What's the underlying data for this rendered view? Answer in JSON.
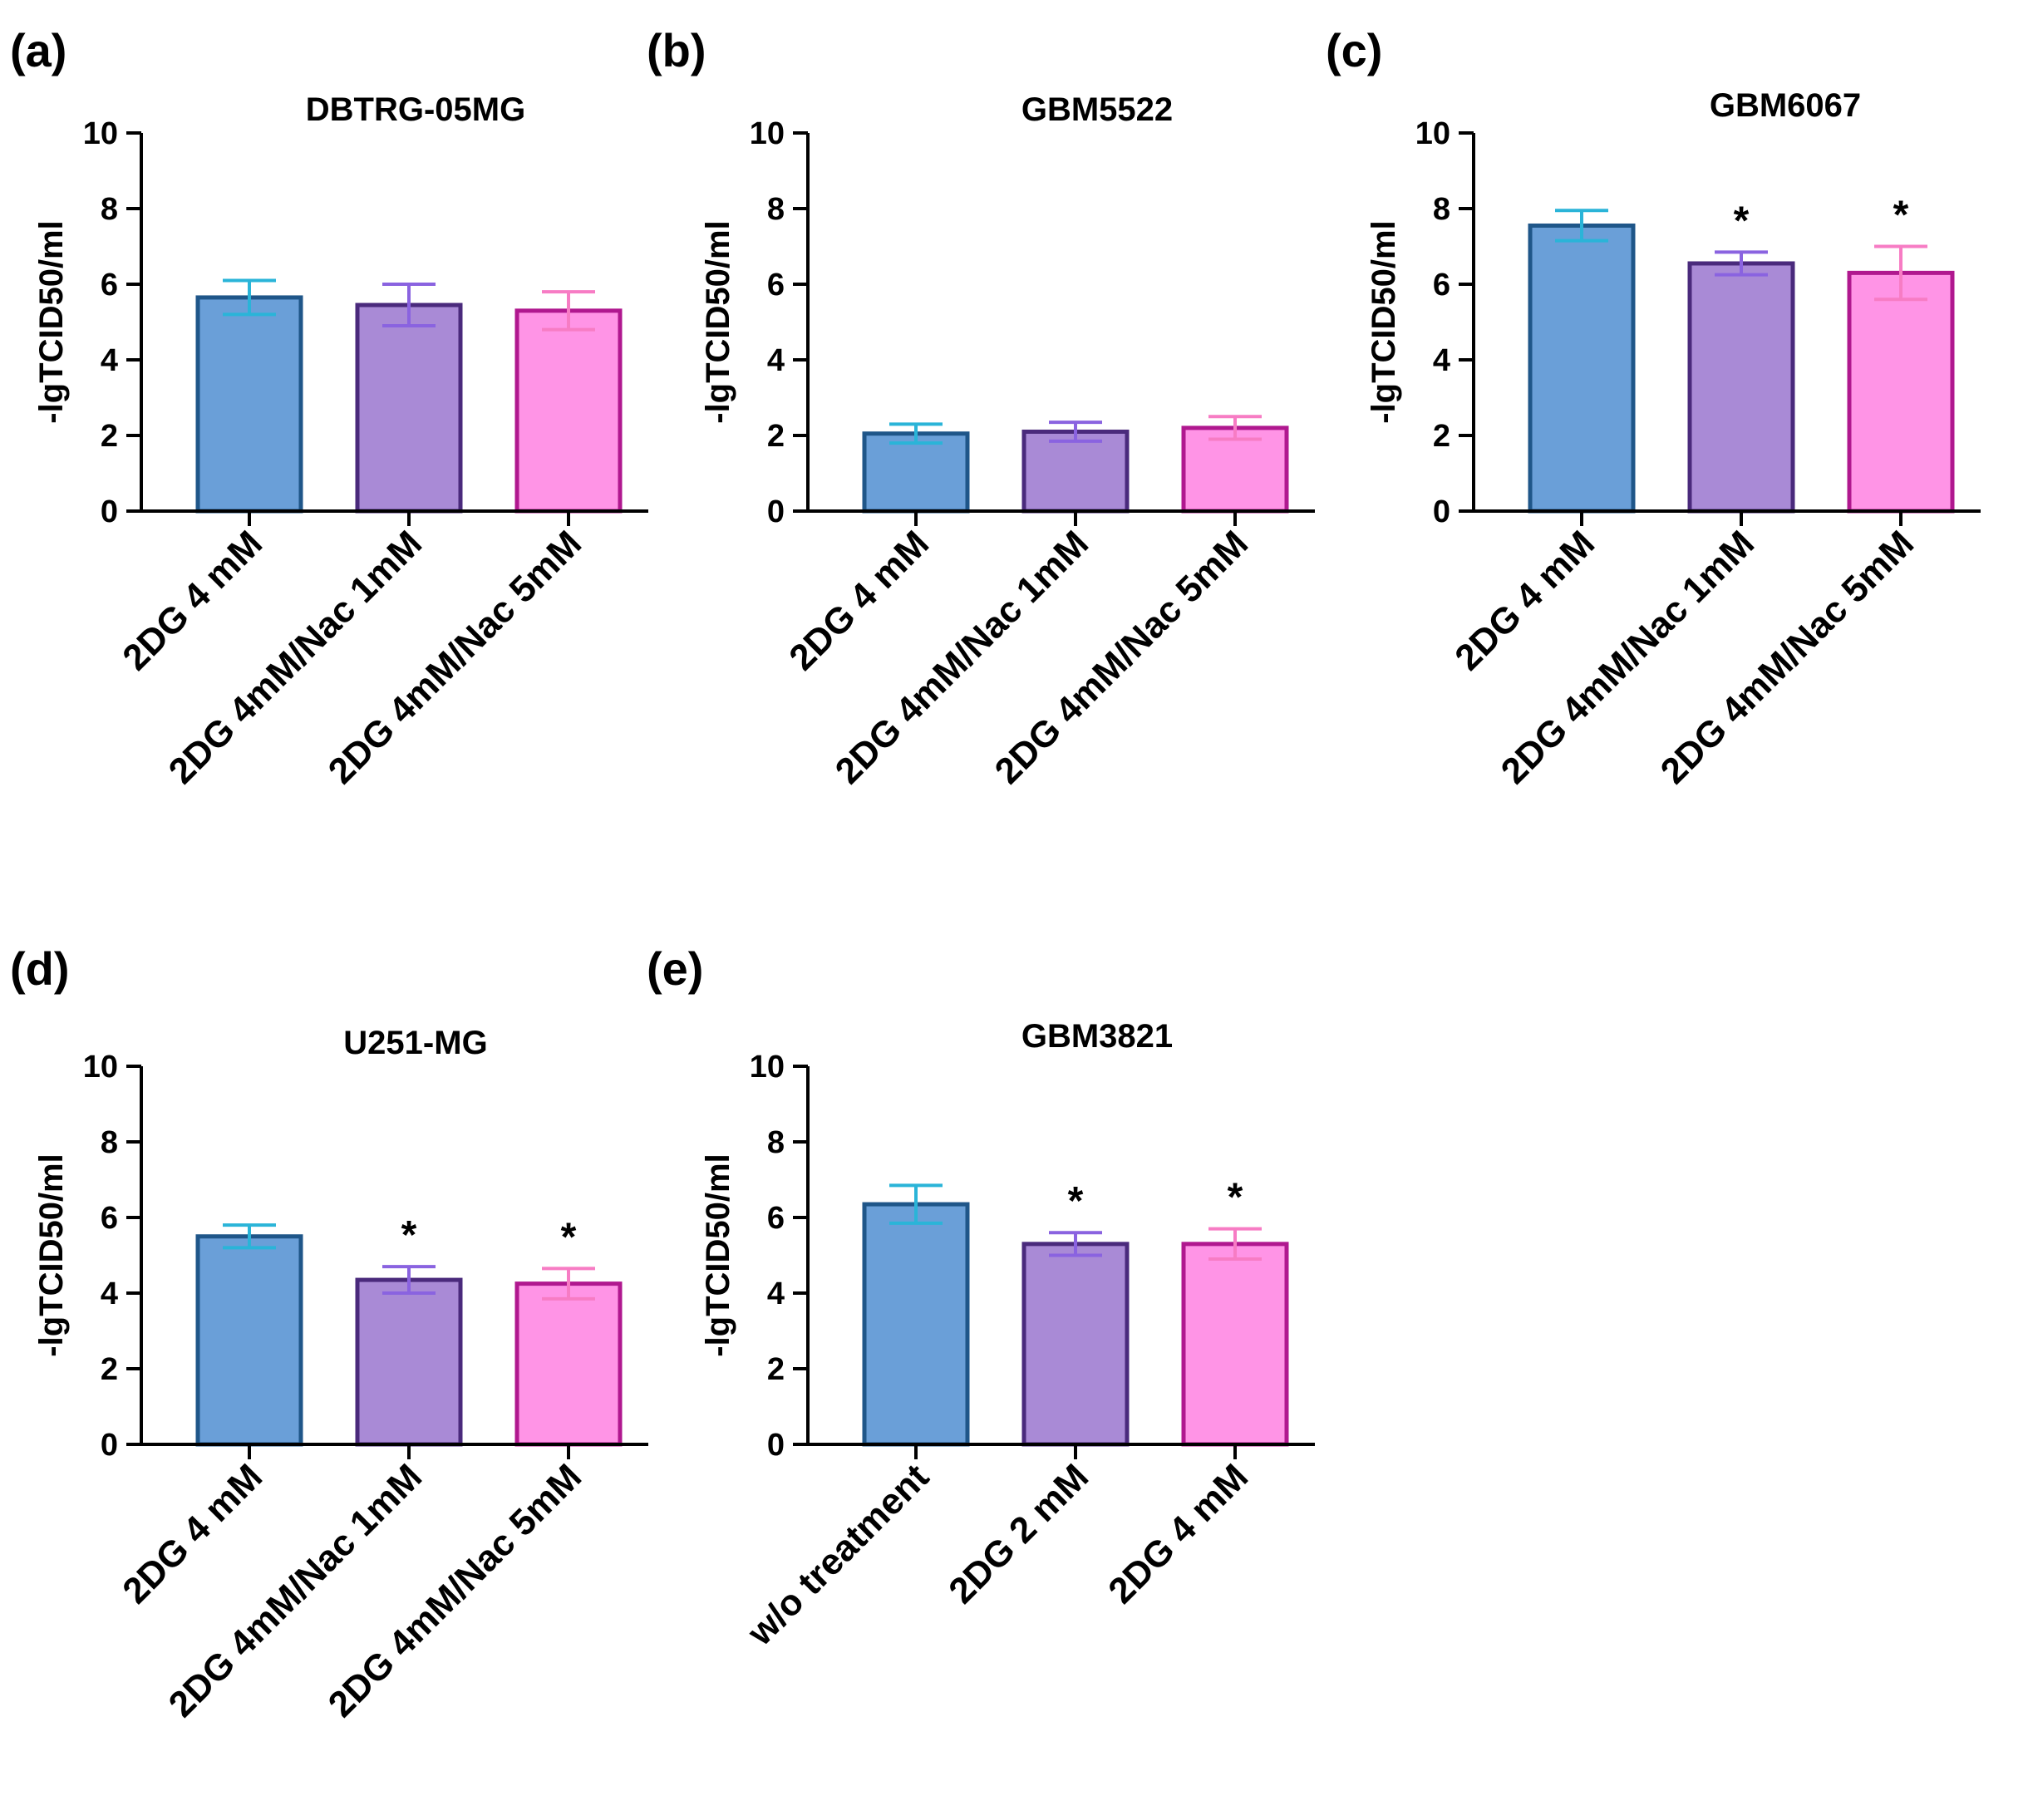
{
  "chart_data": [
    {
      "type": "bar",
      "panel": "(a)",
      "title": "DBTRG-05MG",
      "ylabel": "-lgTCID50/ml",
      "ylim": [
        0,
        10
      ],
      "yticks": [
        "0",
        "2",
        "4",
        "6",
        "8",
        "10"
      ],
      "categories": [
        "2DG 4 mM",
        "2DG 4mM/Nac 1mM",
        "2DG 4mM/Nac 5mM"
      ],
      "values": [
        5.65,
        5.45,
        5.3
      ],
      "errors": [
        0.45,
        0.55,
        0.5
      ],
      "significance": [
        "",
        "",
        ""
      ],
      "bar_colors": [
        "#6a9fd8",
        "#a98ad6",
        "#ff94e6"
      ],
      "edge_colors": [
        "#1f5689",
        "#4a2a7c",
        "#b0188f"
      ],
      "error_colors": [
        "#2ab4d8",
        "#8a63e0",
        "#f77cc4"
      ]
    },
    {
      "type": "bar",
      "panel": "(b)",
      "title": "GBM5522",
      "ylabel": "-lgTCID50/ml",
      "ylim": [
        0,
        10
      ],
      "yticks": [
        "0",
        "2",
        "4",
        "6",
        "8",
        "10"
      ],
      "categories": [
        "2DG 4 mM",
        "2DG 4mM/Nac 1mM",
        "2DG 4mM/Nac 5mM"
      ],
      "values": [
        2.05,
        2.1,
        2.2
      ],
      "errors": [
        0.25,
        0.25,
        0.3
      ],
      "significance": [
        "",
        "",
        ""
      ],
      "bar_colors": [
        "#6a9fd8",
        "#a98ad6",
        "#ff94e6"
      ],
      "edge_colors": [
        "#1f5689",
        "#4a2a7c",
        "#b0188f"
      ],
      "error_colors": [
        "#2ab4d8",
        "#8a63e0",
        "#f77cc4"
      ]
    },
    {
      "type": "bar",
      "panel": "(c)",
      "title": "GBM6067",
      "ylabel": "-lgTCID50/ml",
      "ylim": [
        0,
        10
      ],
      "yticks": [
        "0",
        "2",
        "4",
        "6",
        "8",
        "10"
      ],
      "categories": [
        "2DG 4 mM",
        "2DG 4mM/Nac 1mM",
        "2DG 4mM/Nac 5mM"
      ],
      "values": [
        7.55,
        6.55,
        6.3
      ],
      "errors": [
        0.4,
        0.3,
        0.7
      ],
      "significance": [
        "",
        "*",
        "*"
      ],
      "bar_colors": [
        "#6a9fd8",
        "#a98ad6",
        "#ff94e6"
      ],
      "edge_colors": [
        "#1f5689",
        "#4a2a7c",
        "#b0188f"
      ],
      "error_colors": [
        "#2ab4d8",
        "#8a63e0",
        "#f77cc4"
      ]
    },
    {
      "type": "bar",
      "panel": "(d)",
      "title": "U251-MG",
      "ylabel": "-lgTCID50/ml",
      "ylim": [
        0,
        10
      ],
      "yticks": [
        "0",
        "2",
        "4",
        "6",
        "8",
        "10"
      ],
      "categories": [
        "2DG 4 mM",
        "2DG 4mM/Nac 1mM",
        "2DG 4mM/Nac 5mM"
      ],
      "values": [
        5.5,
        4.35,
        4.25
      ],
      "errors": [
        0.3,
        0.35,
        0.4
      ],
      "significance": [
        "",
        "*",
        "*"
      ],
      "bar_colors": [
        "#6a9fd8",
        "#a98ad6",
        "#ff94e6"
      ],
      "edge_colors": [
        "#1f5689",
        "#4a2a7c",
        "#b0188f"
      ],
      "error_colors": [
        "#2ab4d8",
        "#8a63e0",
        "#f77cc4"
      ]
    },
    {
      "type": "bar",
      "panel": "(e)",
      "title": "GBM3821",
      "ylabel": "-lgTCID50/ml",
      "ylim": [
        0,
        10
      ],
      "yticks": [
        "0",
        "2",
        "4",
        "6",
        "8",
        "10"
      ],
      "categories": [
        "w/o treatment",
        "2DG 2 mM",
        "2DG 4 mM"
      ],
      "values": [
        6.35,
        5.3,
        5.3
      ],
      "errors": [
        0.5,
        0.3,
        0.4
      ],
      "significance": [
        "",
        "*",
        "*"
      ],
      "bar_colors": [
        "#6a9fd8",
        "#a98ad6",
        "#ff94e6"
      ],
      "edge_colors": [
        "#1f5689",
        "#4a2a7c",
        "#b0188f"
      ],
      "error_colors": [
        "#2ab4d8",
        "#8a63e0",
        "#f77cc4"
      ]
    }
  ]
}
